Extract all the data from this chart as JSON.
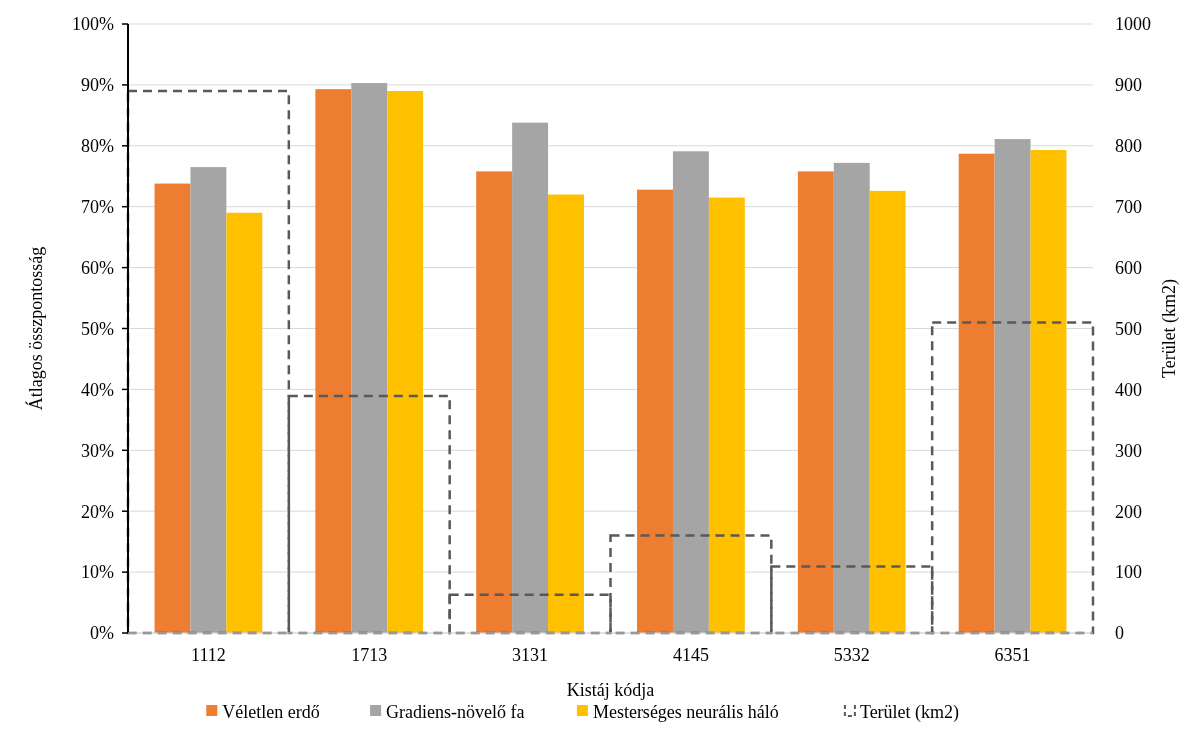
{
  "chart_data": {
    "type": "bar",
    "xlabel": "Kistáj kódja",
    "ylabel": "Átlagos összpontosság",
    "y2label": "Terület (km2)",
    "categories": [
      "1112",
      "1713",
      "3131",
      "4145",
      "5332",
      "6351"
    ],
    "series": [
      {
        "name": "Véletlen erdő",
        "color": "#ed7d31",
        "values": [
          73.8,
          89.3,
          75.8,
          72.8,
          75.8,
          78.7
        ]
      },
      {
        "name": "Gradiens-növelő fa",
        "color": "#a5a5a5",
        "values": [
          76.5,
          90.3,
          83.8,
          79.1,
          77.2,
          81.1
        ]
      },
      {
        "name": "Mesterséges neurális háló",
        "color": "#ffc000",
        "values": [
          69.0,
          89.0,
          72.0,
          71.5,
          72.6,
          79.3
        ]
      },
      {
        "name": "Terület (km2)",
        "color": "#595959",
        "axis": "y2",
        "line_style": "dashed",
        "values": [
          890,
          389,
          63,
          160,
          109,
          510
        ]
      }
    ],
    "ylim": [
      0,
      100
    ],
    "yticks": [
      {
        "value": 0,
        "label": "0%"
      },
      {
        "value": 10,
        "label": "10%"
      },
      {
        "value": 20,
        "label": "20%"
      },
      {
        "value": 30,
        "label": "30%"
      },
      {
        "value": 40,
        "label": "40%"
      },
      {
        "value": 50,
        "label": "50%"
      },
      {
        "value": 60,
        "label": "60%"
      },
      {
        "value": 70,
        "label": "70%"
      },
      {
        "value": 80,
        "label": "80%"
      },
      {
        "value": 90,
        "label": "90%"
      },
      {
        "value": 100,
        "label": "100%"
      }
    ],
    "y2lim": [
      0,
      1000
    ],
    "y2ticks": [
      0,
      100,
      200,
      300,
      400,
      500,
      600,
      700,
      800,
      900,
      1000
    ],
    "grid": "y",
    "legend": "bottom"
  }
}
